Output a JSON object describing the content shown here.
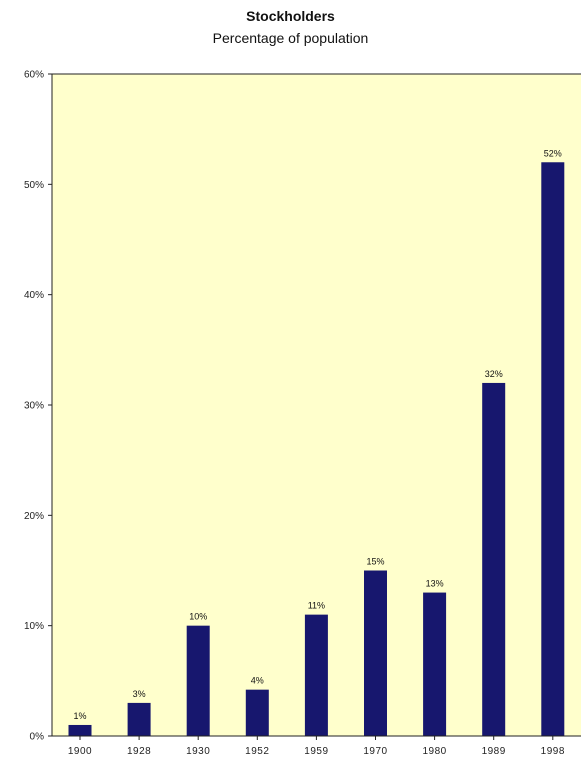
{
  "chart_data": {
    "type": "bar",
    "title": "Stockholders",
    "subtitle": "Percentage of population",
    "xlabel": "",
    "ylabel": "",
    "categories": [
      "1900",
      "1928",
      "1930",
      "1952",
      "1959",
      "1970",
      "1980",
      "1989",
      "1998"
    ],
    "values": [
      1,
      3,
      10,
      4.2,
      11,
      15,
      13,
      32,
      52
    ],
    "data_labels": [
      "1%",
      "3%",
      "10%",
      "4%",
      "11%",
      "15%",
      "13%",
      "32%",
      "52%"
    ],
    "ylim": [
      0,
      60
    ],
    "yticks": [
      0,
      10,
      20,
      30,
      40,
      50,
      60
    ],
    "ytick_labels": [
      "0%",
      "10%",
      "20%",
      "30%",
      "40%",
      "50%",
      "60%"
    ],
    "grid": false,
    "legend": "none",
    "colors": {
      "plot_background": "#FFFFCC",
      "bar": "#17176E",
      "axis": "#222222"
    }
  }
}
